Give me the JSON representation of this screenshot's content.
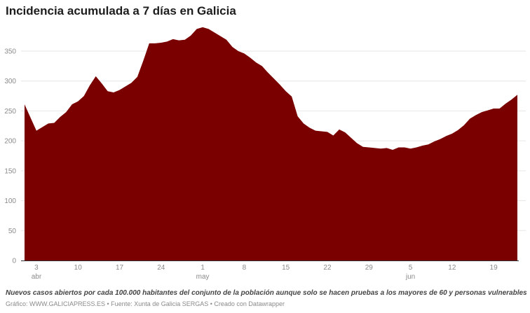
{
  "title": "Incidencia acumulada a 7 días en Galicia",
  "notes": "Nuevos casos abiertos por cada 100.000 habitantes del conjunto de la población aunque solo se hacen pruebas a los mayores de 60 y personas vulnerables",
  "byline": "Gráfico: WWW.GALICIAPRESS.ES • Fuente: Xunta de Galicia SERGAS • Creado con Datawrapper",
  "colors": {
    "area": "#7a0000",
    "grid": "#e6e6e6",
    "axis": "#333333"
  },
  "chart_data": {
    "type": "area",
    "title": "Incidencia acumulada a 7 días en Galicia",
    "xlabel": "",
    "ylabel": "",
    "ylim": [
      0,
      390
    ],
    "yticks": [
      0,
      50,
      100,
      150,
      200,
      250,
      300,
      350
    ],
    "grid": true,
    "xticks": [
      {
        "date": "04-03",
        "label": "3",
        "month": "abr"
      },
      {
        "date": "04-10",
        "label": "10",
        "month": ""
      },
      {
        "date": "04-17",
        "label": "17",
        "month": ""
      },
      {
        "date": "04-24",
        "label": "24",
        "month": ""
      },
      {
        "date": "05-01",
        "label": "1",
        "month": "may"
      },
      {
        "date": "05-08",
        "label": "8",
        "month": ""
      },
      {
        "date": "05-15",
        "label": "15",
        "month": ""
      },
      {
        "date": "05-22",
        "label": "22",
        "month": ""
      },
      {
        "date": "05-29",
        "label": "29",
        "month": ""
      },
      {
        "date": "06-05",
        "label": "5",
        "month": "jun"
      },
      {
        "date": "06-12",
        "label": "12",
        "month": ""
      },
      {
        "date": "06-19",
        "label": "19",
        "month": ""
      }
    ],
    "x": [
      "04-01",
      "04-02",
      "04-03",
      "04-04",
      "04-05",
      "04-06",
      "04-07",
      "04-08",
      "04-09",
      "04-10",
      "04-11",
      "04-12",
      "04-13",
      "04-14",
      "04-15",
      "04-16",
      "04-17",
      "04-18",
      "04-19",
      "04-20",
      "04-21",
      "04-22",
      "04-23",
      "04-24",
      "04-25",
      "04-26",
      "04-27",
      "04-28",
      "04-29",
      "04-30",
      "05-01",
      "05-02",
      "05-03",
      "05-04",
      "05-05",
      "05-06",
      "05-07",
      "05-08",
      "05-09",
      "05-10",
      "05-11",
      "05-12",
      "05-13",
      "05-14",
      "05-15",
      "05-16",
      "05-17",
      "05-18",
      "05-19",
      "05-20",
      "05-21",
      "05-22",
      "05-23",
      "05-24",
      "05-25",
      "05-26",
      "05-27",
      "05-28",
      "05-29",
      "05-30",
      "05-31",
      "06-01",
      "06-02",
      "06-03",
      "06-04",
      "06-05",
      "06-06",
      "06-07",
      "06-08",
      "06-09",
      "06-10",
      "06-11",
      "06-12",
      "06-13",
      "06-14",
      "06-15",
      "06-16",
      "06-17",
      "06-18",
      "06-19",
      "06-20",
      "06-21",
      "06-22",
      "06-23"
    ],
    "values": [
      261,
      239,
      217,
      223,
      229,
      230,
      240,
      248,
      261,
      266,
      275,
      293,
      308,
      296,
      283,
      281,
      285,
      291,
      297,
      307,
      334,
      363,
      363,
      364,
      366,
      370,
      368,
      369,
      376,
      387,
      390,
      387,
      381,
      375,
      369,
      357,
      350,
      346,
      339,
      331,
      325,
      314,
      304,
      294,
      283,
      274,
      241,
      229,
      222,
      217,
      216,
      215,
      209,
      219,
      214,
      205,
      196,
      190,
      189,
      188,
      187,
      188,
      185,
      189,
      189,
      187,
      189,
      192,
      194,
      199,
      203,
      208,
      212,
      218,
      226,
      237,
      243,
      248,
      251,
      254,
      254,
      262,
      269,
      277
    ]
  }
}
